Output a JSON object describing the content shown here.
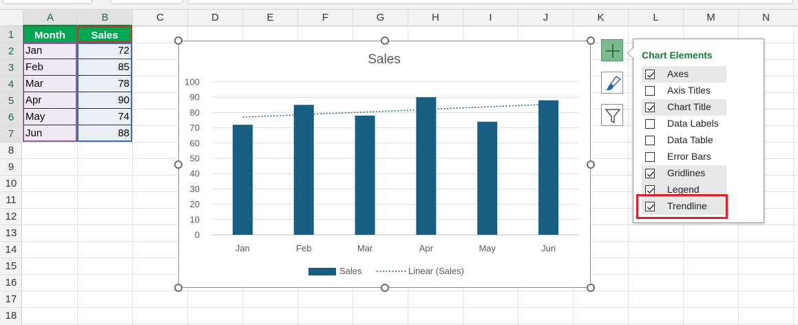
{
  "columns": [
    "A",
    "B",
    "C",
    "D",
    "E",
    "F",
    "G",
    "H",
    "I",
    "J",
    "K",
    "L",
    "M",
    "N"
  ],
  "rows": [
    "1",
    "2",
    "3",
    "4",
    "5",
    "6",
    "7",
    "8",
    "9",
    "10",
    "11",
    "12",
    "13",
    "14",
    "15",
    "16",
    "17",
    "18"
  ],
  "table": {
    "headers": [
      "Month",
      "Sales"
    ],
    "rows": [
      {
        "month": "Jan",
        "sales": "72"
      },
      {
        "month": "Feb",
        "sales": "85"
      },
      {
        "month": "Mar",
        "sales": "78"
      },
      {
        "month": "Apr",
        "sales": "90"
      },
      {
        "month": "May",
        "sales": "74"
      },
      {
        "month": "Jun",
        "sales": "88"
      }
    ]
  },
  "chart_data": {
    "type": "bar",
    "title": "Sales",
    "categories": [
      "Jan",
      "Feb",
      "Mar",
      "Apr",
      "May",
      "Jun"
    ],
    "series": [
      {
        "name": "Sales",
        "values": [
          72,
          85,
          78,
          90,
          74,
          88
        ],
        "color": "#185e82"
      }
    ],
    "trendline": {
      "name": "Linear (Sales)",
      "type": "linear",
      "style": "dotted",
      "color": "#185e82"
    },
    "ylim": [
      0,
      100
    ],
    "yticks": [
      "0",
      "10",
      "20",
      "30",
      "40",
      "50",
      "60",
      "70",
      "80",
      "90",
      "100"
    ],
    "grid": true,
    "legend_position": "bottom",
    "xlabel": "",
    "ylabel": ""
  },
  "chart_side_buttons": [
    {
      "name": "chart-elements-button",
      "icon": "plus-icon"
    },
    {
      "name": "chart-styles-button",
      "icon": "paintbrush-icon"
    },
    {
      "name": "chart-filters-button",
      "icon": "funnel-icon"
    }
  ],
  "chart_elements_popup": {
    "title": "Chart Elements",
    "items": [
      {
        "label": "Axes",
        "checked": true
      },
      {
        "label": "Axis Titles",
        "checked": false
      },
      {
        "label": "Chart Title",
        "checked": true
      },
      {
        "label": "Data Labels",
        "checked": false
      },
      {
        "label": "Data Table",
        "checked": false
      },
      {
        "label": "Error Bars",
        "checked": false
      },
      {
        "label": "Gridlines",
        "checked": true
      },
      {
        "label": "Legend",
        "checked": true
      },
      {
        "label": "Trendline",
        "checked": true
      }
    ],
    "highlighted": "Trendline"
  },
  "colors": {
    "header_green": "#00a651",
    "accent_green": "#1e7b3c",
    "bar": "#185e82",
    "highlight_red": "#e0202a"
  }
}
